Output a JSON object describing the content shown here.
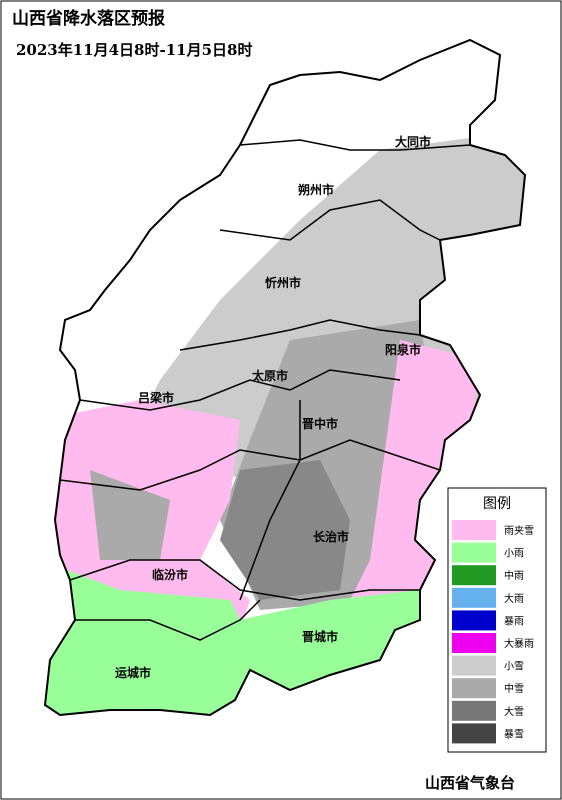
{
  "header": {
    "title": "山西省降水落区预报",
    "subtitle": "2023年11月4日8时-11月5日8时"
  },
  "cities": [
    "大同市",
    "朔州市",
    "忻州市",
    "阳泉市",
    "太原市",
    "吕梁市",
    "晋中市",
    "长治市",
    "临汾市",
    "晋城市",
    "运城市"
  ],
  "legend": {
    "title": "图例",
    "items": [
      {
        "name": "雨夹雪",
        "color": "#ffbbee"
      },
      {
        "name": "小雨",
        "color": "#99ff99"
      },
      {
        "name": "中雨",
        "color": "#229922"
      },
      {
        "name": "大雨",
        "color": "#66b2ee"
      },
      {
        "name": "暴雨",
        "color": "#0000cc"
      },
      {
        "name": "大暴雨",
        "color": "#ee00ee"
      },
      {
        "name": "小雪",
        "color": "#cccccc"
      },
      {
        "name": "中雪",
        "color": "#aaaaaa"
      },
      {
        "name": "大雪",
        "color": "#777777"
      },
      {
        "name": "暴雪",
        "color": "#444444"
      }
    ]
  },
  "footer": "山西省气象台"
}
